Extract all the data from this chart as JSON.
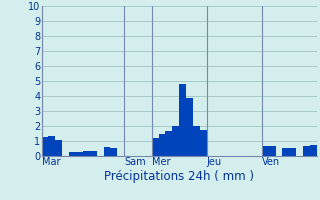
{
  "xlabel": "Précipitations 24h ( mm )",
  "background_color": "#d4eeee",
  "plot_bg_color": "#d4eeee",
  "bar_color_main": "#0044bb",
  "bar_color_light": "#3399ee",
  "grid_color": "#99bbbb",
  "vline_color": "#7788aa",
  "ylim": [
    0,
    10
  ],
  "yticks": [
    0,
    1,
    2,
    3,
    4,
    5,
    6,
    7,
    8,
    9,
    10
  ],
  "day_labels": [
    "Mar",
    "Sam",
    "Mer",
    "Jeu",
    "Ven"
  ],
  "xlabel_fontsize": 8.5,
  "tick_fontsize": 7,
  "num_bars": 40,
  "bar_values": [
    1.3,
    1.35,
    1.1,
    0.0,
    0.3,
    0.3,
    0.35,
    0.35,
    0.0,
    0.6,
    0.55,
    0.0,
    0.0,
    0.0,
    0.0,
    0.0,
    1.2,
    1.5,
    1.7,
    2.0,
    4.8,
    3.9,
    2.0,
    1.75,
    0.0,
    0.0,
    0.0,
    0.0,
    0.0,
    0.0,
    0.0,
    0.0,
    0.7,
    0.65,
    0.0,
    0.55,
    0.55,
    0.0,
    0.7,
    0.75
  ],
  "day_tick_indices": [
    0,
    12,
    16,
    24,
    32
  ]
}
